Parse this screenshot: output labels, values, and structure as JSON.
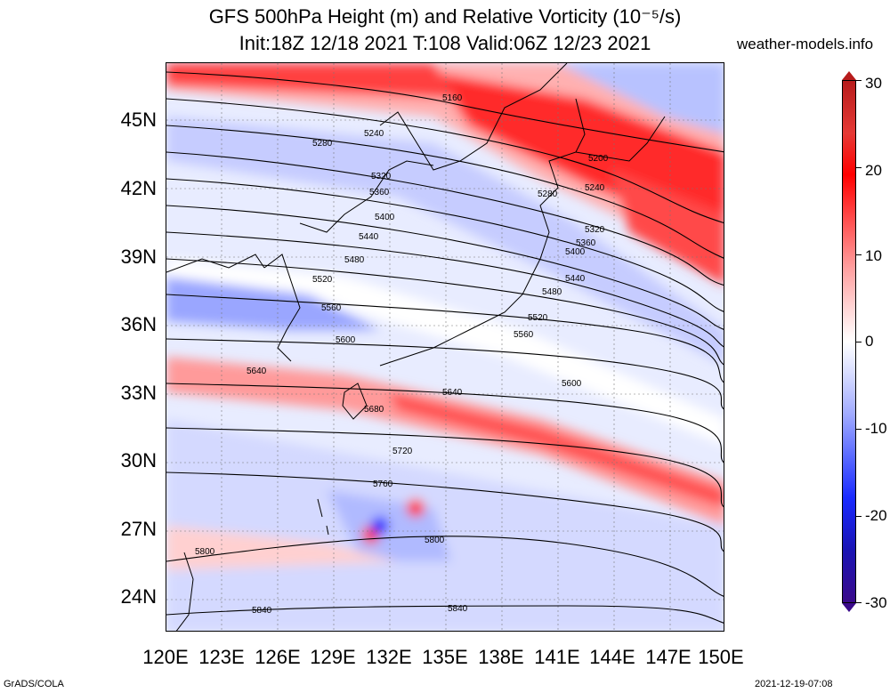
{
  "title": {
    "line1": "GFS 500hPa Height (m) and Relative Vorticity (10⁻⁵/s)",
    "line2": "Init:18Z 12/18 2021 T:108 Valid:06Z 12/23 2021"
  },
  "site": "weather-models.info",
  "axes": {
    "lat_labels": [
      "45N",
      "42N",
      "39N",
      "36N",
      "33N",
      "30N",
      "27N",
      "24N"
    ],
    "lon_labels": [
      "120E",
      "123E",
      "126E",
      "129E",
      "132E",
      "135E",
      "138E",
      "141E",
      "144E",
      "147E",
      "150E"
    ]
  },
  "colorbar": {
    "labels": [
      "30",
      "20",
      "10",
      "0",
      "-10",
      "-20",
      "-30"
    ],
    "colors": {
      "max": "#b71c1c",
      "positive": "#ff0000",
      "zero": "#ffffff",
      "negative": "#1a2aff",
      "min": "#3a0a8a"
    }
  },
  "contours": {
    "labels": [
      "5160",
      "5200",
      "5240",
      "5240",
      "5280",
      "5280",
      "5320",
      "5320",
      "5360",
      "5360",
      "5400",
      "5400",
      "5440",
      "5440",
      "5480",
      "5480",
      "5520",
      "5520",
      "5560",
      "5560",
      "5600",
      "5600",
      "5640",
      "5640",
      "5680",
      "5720",
      "5760",
      "5800",
      "5800",
      "5840",
      "5840"
    ]
  },
  "footer": {
    "left": "GrADS/COLA",
    "right": "2021-12-19-07:08"
  }
}
